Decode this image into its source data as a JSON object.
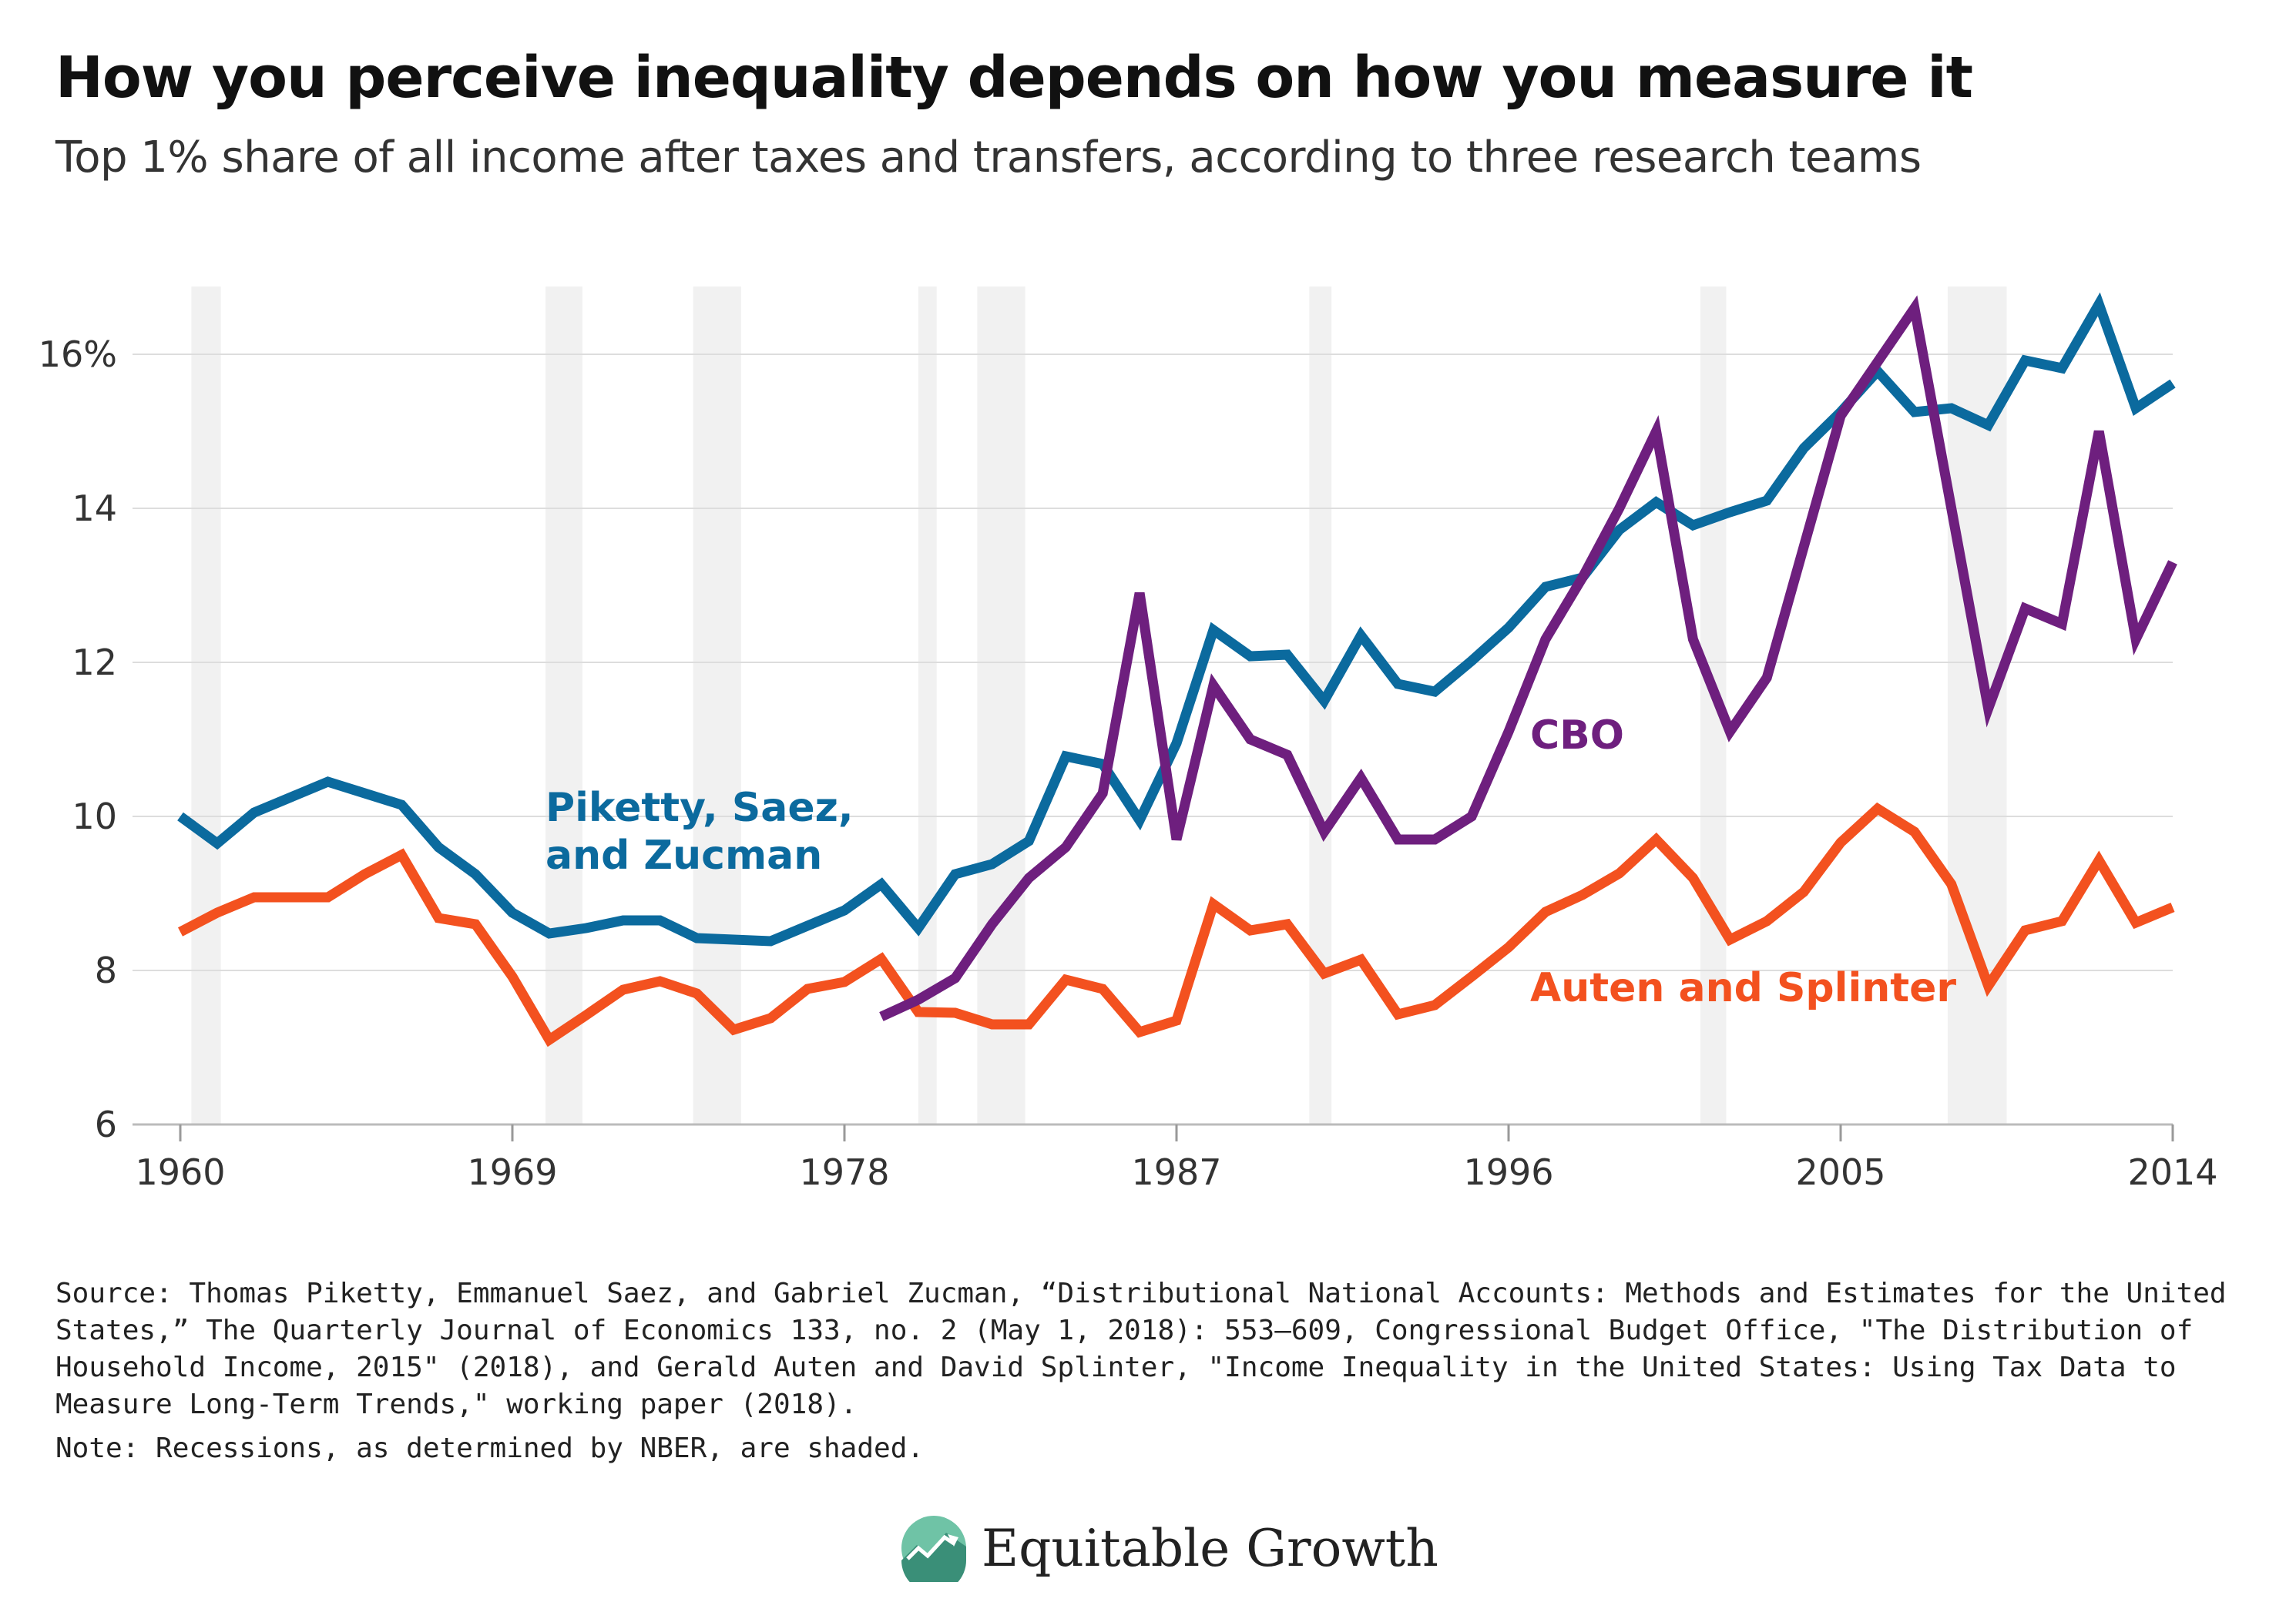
{
  "header": {
    "title": "How you perceive inequality depends on how you measure it",
    "subtitle": "Top 1% share of all income after taxes and transfers, according to three research teams"
  },
  "footer": {
    "source": "Source: Thomas Piketty, Emmanuel Saez, and Gabriel Zucman, “Distributional National Accounts: Methods and Estimates for the United States,” The Quarterly Journal of Economics 133, no. 2 (May 1, 2018): 553–609, Congressional Budget Office, \"The Distribution of Household Income, 2015\" (2018), and Gerald Auten and David Splinter, \"Income Inequality in the United States: Using Tax Data to Measure Long-Term Trends,\" working paper (2018).",
    "note": "Note: Recessions, as determined by NBER, are shaded.",
    "logo_text": "Equitable Growth",
    "logo_icon": "rising-chart-logo-icon"
  },
  "colors": {
    "psz": "#0b6a9e",
    "cbo": "#6e1f7e",
    "as": "#f3511f",
    "recession": "#f1f1f1",
    "grid": "#dddddd"
  },
  "chart_data": {
    "type": "line",
    "xlim": [
      1960,
      2014
    ],
    "ylim": [
      6,
      17
    ],
    "x_ticks": [
      1960,
      1969,
      1978,
      1987,
      1996,
      2005,
      2014
    ],
    "y_ticks": [
      6,
      8,
      10,
      12,
      14,
      16
    ],
    "y_tick_labels": [
      "6",
      "8",
      "10",
      "12",
      "14",
      "16%"
    ],
    "grid": "horizontal",
    "recessions": [
      [
        1960.3,
        1961.1
      ],
      [
        1969.9,
        1970.9
      ],
      [
        1973.9,
        1975.2
      ],
      [
        1980.0,
        1980.5
      ],
      [
        1981.6,
        1982.9
      ],
      [
        1990.6,
        1991.2
      ],
      [
        2001.2,
        2001.9
      ],
      [
        2007.9,
        2009.5
      ]
    ],
    "series": [
      {
        "name": "Piketty, Saez, and Zucman",
        "label_lines": [
          "Piketty, Saez,",
          "and Zucman"
        ],
        "color_key": "psz",
        "x": [
          1960,
          1961,
          1962,
          1963,
          1964,
          1965,
          1966,
          1967,
          1968,
          1969,
          1970,
          1971,
          1972,
          1973,
          1974,
          1975,
          1976,
          1977,
          1978,
          1979,
          1980,
          1981,
          1982,
          1983,
          1984,
          1985,
          1986,
          1987,
          1988,
          1989,
          1990,
          1991,
          1992,
          1993,
          1994,
          1995,
          1996,
          1997,
          1998,
          1999,
          2000,
          2001,
          2002,
          2003,
          2004,
          2005,
          2006,
          2007,
          2008,
          2009,
          2010,
          2011,
          2012,
          2013,
          2014
        ],
        "values": [
          10.0,
          9.65,
          10.05,
          10.25,
          10.45,
          10.3,
          10.15,
          9.6,
          9.25,
          8.75,
          8.48,
          8.55,
          8.65,
          8.65,
          8.42,
          8.4,
          8.38,
          8.58,
          8.78,
          9.12,
          8.55,
          9.25,
          9.38,
          9.68,
          10.78,
          10.68,
          9.95,
          10.95,
          12.42,
          12.08,
          12.1,
          11.5,
          12.35,
          11.72,
          11.62,
          12.02,
          12.45,
          12.98,
          13.1,
          13.72,
          14.08,
          13.78,
          13.95,
          14.1,
          14.78,
          15.25,
          15.78,
          15.25,
          15.3,
          15.08,
          15.92,
          15.82,
          16.65,
          15.3,
          15.62
        ]
      },
      {
        "name": "CBO",
        "label_lines": [
          "CBO"
        ],
        "color_key": "cbo",
        "x": [
          1979,
          1980,
          1981,
          1982,
          1983,
          1984,
          1985,
          1986,
          1987,
          1988,
          1989,
          1990,
          1991,
          1992,
          1993,
          1994,
          1995,
          1996,
          1997,
          1998,
          1999,
          2000,
          2001,
          2002,
          2003,
          2004,
          2005,
          2006,
          2007,
          2008,
          2009,
          2010,
          2011,
          2012,
          2013,
          2014
        ],
        "values": [
          7.4,
          7.62,
          7.9,
          8.6,
          9.2,
          9.6,
          10.3,
          12.9,
          9.7,
          11.7,
          11.0,
          10.8,
          9.8,
          10.5,
          9.7,
          9.7,
          10.0,
          11.1,
          12.3,
          13.1,
          14.0,
          15.0,
          12.3,
          11.1,
          11.8,
          13.5,
          15.2,
          15.9,
          16.6,
          14.0,
          11.4,
          12.7,
          12.5,
          15.0,
          12.3,
          13.3
        ]
      },
      {
        "name": "Auten and Splinter",
        "label_lines": [
          "Auten and Splinter"
        ],
        "color_key": "as",
        "x": [
          1960,
          1961,
          1962,
          1963,
          1964,
          1965,
          1966,
          1967,
          1968,
          1969,
          1970,
          1971,
          1972,
          1973,
          1974,
          1975,
          1976,
          1977,
          1978,
          1979,
          1980,
          1981,
          1982,
          1983,
          1984,
          1985,
          1986,
          1987,
          1988,
          1989,
          1990,
          1991,
          1992,
          1993,
          1994,
          1995,
          1996,
          1997,
          1998,
          1999,
          2000,
          2001,
          2002,
          2003,
          2004,
          2005,
          2006,
          2007,
          2008,
          2009,
          2010,
          2011,
          2012,
          2013,
          2014
        ],
        "values": [
          8.5,
          8.75,
          8.95,
          8.95,
          8.95,
          9.25,
          9.5,
          8.68,
          8.6,
          7.92,
          7.1,
          7.42,
          7.75,
          7.86,
          7.7,
          7.23,
          7.38,
          7.76,
          7.85,
          8.15,
          7.46,
          7.45,
          7.3,
          7.3,
          7.88,
          7.76,
          7.2,
          7.35,
          8.86,
          8.52,
          8.6,
          7.96,
          8.14,
          7.43,
          7.55,
          7.92,
          8.3,
          8.76,
          8.98,
          9.26,
          9.7,
          9.2,
          8.4,
          8.64,
          9.02,
          9.66,
          10.1,
          9.8,
          9.12,
          7.8,
          8.52,
          8.64,
          9.43,
          8.62,
          8.82
        ]
      }
    ]
  }
}
